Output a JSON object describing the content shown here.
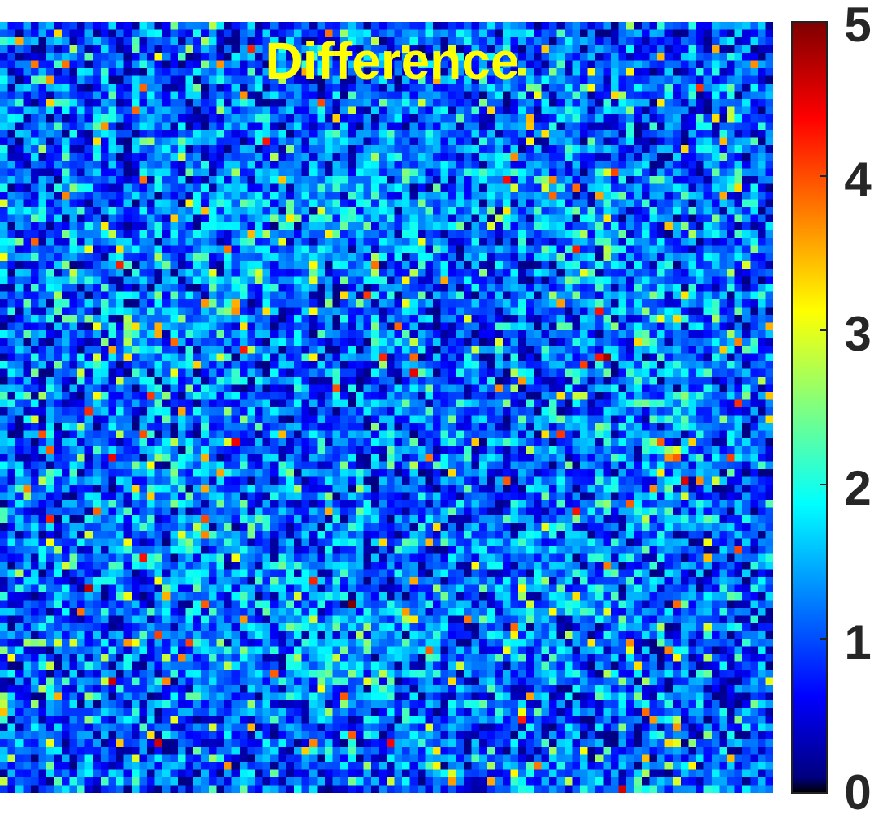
{
  "chart_data": {
    "type": "heatmap",
    "title": "Difference",
    "title_color": "#ffff00",
    "colormap": "jet",
    "grid": false,
    "rows": 100,
    "cols": 100,
    "value_distribution": "speckle noise, mostly 0.5-2.5, rare peaks near 5",
    "colorbar": {
      "position": "right",
      "clim": [
        0,
        5
      ],
      "ticks": [
        0,
        1,
        2,
        3,
        4,
        5
      ],
      "tick_labels": [
        "0",
        "1",
        "2",
        "3",
        "4",
        "5"
      ]
    }
  }
}
